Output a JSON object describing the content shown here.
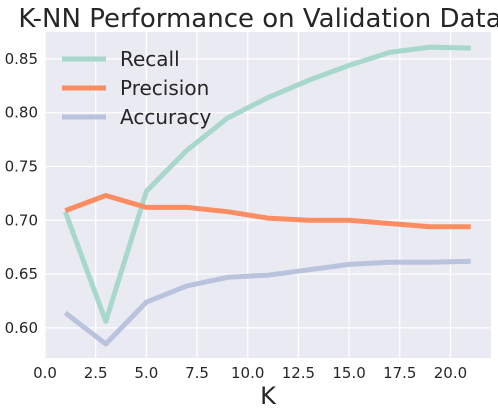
{
  "chart_data": {
    "type": "line",
    "title": "K-NN Performance on Validation Data",
    "xlabel": "K",
    "ylabel": "",
    "xlim": [
      0.0,
      22.0
    ],
    "ylim": [
      0.572,
      0.875
    ],
    "x_ticks": [
      "0.0",
      "2.5",
      "5.0",
      "7.5",
      "10.0",
      "12.5",
      "15.0",
      "17.5",
      "20.0"
    ],
    "x_tick_values": [
      0,
      2.5,
      5,
      7.5,
      10,
      12.5,
      15,
      17.5,
      20
    ],
    "y_ticks": [
      "0.60",
      "0.65",
      "0.70",
      "0.75",
      "0.80",
      "0.85"
    ],
    "y_tick_values": [
      0.6,
      0.65,
      0.7,
      0.75,
      0.8,
      0.85
    ],
    "grid": true,
    "legend_position": "top-left",
    "x": [
      1,
      3,
      5,
      7,
      9,
      11,
      13,
      15,
      17,
      19,
      21
    ],
    "series": [
      {
        "name": "Recall",
        "color": "#a8d8cb",
        "values": [
          0.708,
          0.606,
          0.727,
          0.765,
          0.795,
          0.814,
          0.83,
          0.844,
          0.856,
          0.861,
          0.86
        ]
      },
      {
        "name": "Precision",
        "color": "#fc8d62",
        "values": [
          0.709,
          0.723,
          0.712,
          0.712,
          0.708,
          0.702,
          0.7,
          0.7,
          0.697,
          0.694,
          0.694
        ]
      },
      {
        "name": "Accuracy",
        "color": "#bac3dd",
        "values": [
          0.614,
          0.585,
          0.624,
          0.639,
          0.647,
          0.649,
          0.654,
          0.659,
          0.661,
          0.661,
          0.662
        ]
      }
    ]
  }
}
